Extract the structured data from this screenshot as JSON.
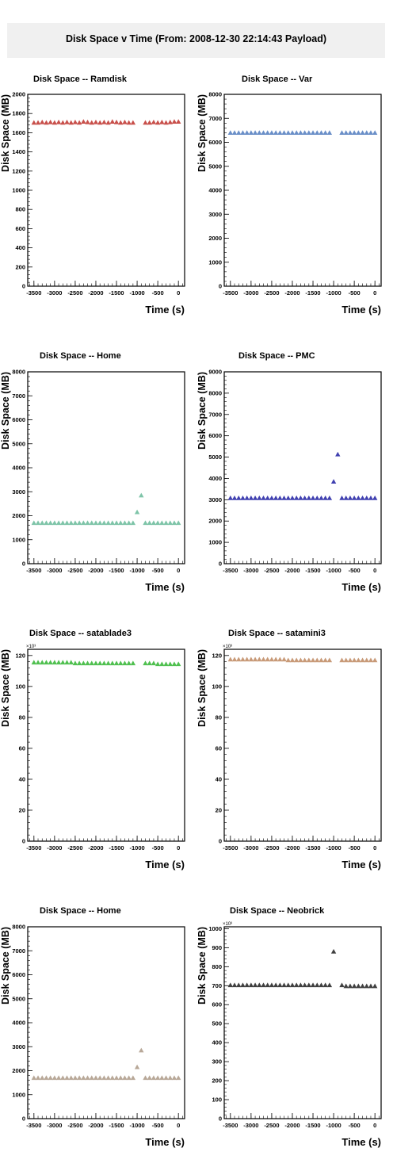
{
  "page_title": "Disk Space v Time (From: 2008-12-30 22:14:43 Payload)",
  "chart_data": [
    {
      "type": "scatter",
      "title": "Disk Space -- Ramdisk",
      "xlabel": "Time (s)",
      "ylabel": "Disk Space (MB)",
      "xlim": [
        -3650,
        150
      ],
      "ylim": [
        0,
        2000
      ],
      "xticks": [
        -3500,
        -3000,
        -2500,
        -2000,
        -1500,
        -1000,
        -500,
        0
      ],
      "yticks": [
        0,
        200,
        400,
        600,
        800,
        1000,
        1200,
        1400,
        1600,
        1800,
        2000
      ],
      "multiplier": "",
      "color": "#c8504b",
      "x": [
        -3500,
        -3400,
        -3300,
        -3200,
        -3100,
        -3000,
        -2900,
        -2800,
        -2700,
        -2600,
        -2500,
        -2400,
        -2300,
        -2200,
        -2100,
        -2000,
        -1900,
        -1800,
        -1700,
        -1600,
        -1500,
        -1400,
        -1300,
        -1200,
        -1100,
        -800,
        -700,
        -600,
        -500,
        -400,
        -300,
        -200,
        -100,
        0
      ],
      "y": [
        1705,
        1705,
        1710,
        1705,
        1710,
        1705,
        1710,
        1705,
        1710,
        1705,
        1710,
        1705,
        1715,
        1710,
        1705,
        1710,
        1705,
        1710,
        1705,
        1715,
        1710,
        1705,
        1710,
        1705,
        1705,
        1705,
        1705,
        1710,
        1705,
        1710,
        1705,
        1710,
        1715,
        1715
      ]
    },
    {
      "type": "scatter",
      "title": "Disk Space -- Var",
      "xlabel": "Time (s)",
      "ylabel": "Disk Space (MB)",
      "xlim": [
        -3650,
        150
      ],
      "ylim": [
        0,
        8000
      ],
      "xticks": [
        -3500,
        -3000,
        -2500,
        -2000,
        -1500,
        -1000,
        -500,
        0
      ],
      "yticks": [
        0,
        1000,
        2000,
        3000,
        4000,
        5000,
        6000,
        7000,
        8000
      ],
      "multiplier": "",
      "color": "#6a8fc8",
      "x": [
        -3500,
        -3400,
        -3300,
        -3200,
        -3100,
        -3000,
        -2900,
        -2800,
        -2700,
        -2600,
        -2500,
        -2400,
        -2300,
        -2200,
        -2100,
        -2000,
        -1900,
        -1800,
        -1700,
        -1600,
        -1500,
        -1400,
        -1300,
        -1200,
        -1100,
        -800,
        -700,
        -600,
        -500,
        -400,
        -300,
        -200,
        -100,
        0
      ],
      "y": [
        6400,
        6400,
        6400,
        6400,
        6400,
        6400,
        6400,
        6400,
        6400,
        6400,
        6400,
        6400,
        6400,
        6400,
        6400,
        6400,
        6400,
        6400,
        6400,
        6400,
        6400,
        6400,
        6400,
        6400,
        6400,
        6400,
        6400,
        6400,
        6400,
        6400,
        6400,
        6400,
        6400,
        6400
      ]
    },
    {
      "type": "scatter",
      "title": "Disk Space -- Home",
      "xlabel": "Time (s)",
      "ylabel": "Disk Space (MB)",
      "xlim": [
        -3650,
        150
      ],
      "ylim": [
        0,
        8000
      ],
      "xticks": [
        -3500,
        -3000,
        -2500,
        -2000,
        -1500,
        -1000,
        -500,
        0
      ],
      "yticks": [
        0,
        1000,
        2000,
        3000,
        4000,
        5000,
        6000,
        7000,
        8000
      ],
      "multiplier": "",
      "color": "#7ec4a8",
      "x": [
        -3500,
        -3400,
        -3300,
        -3200,
        -3100,
        -3000,
        -2900,
        -2800,
        -2700,
        -2600,
        -2500,
        -2400,
        -2300,
        -2200,
        -2100,
        -2000,
        -1900,
        -1800,
        -1700,
        -1600,
        -1500,
        -1400,
        -1300,
        -1200,
        -1100,
        -1000,
        -900,
        -800,
        -700,
        -600,
        -500,
        -400,
        -300,
        -200,
        -100,
        0
      ],
      "y": [
        1700,
        1700,
        1700,
        1700,
        1700,
        1700,
        1700,
        1700,
        1700,
        1700,
        1700,
        1700,
        1700,
        1700,
        1700,
        1700,
        1700,
        1700,
        1700,
        1700,
        1700,
        1700,
        1700,
        1700,
        1700,
        2150,
        2850,
        1700,
        1700,
        1700,
        1700,
        1700,
        1700,
        1700,
        1700,
        1700
      ]
    },
    {
      "type": "scatter",
      "title": "Disk Space -- PMC",
      "xlabel": "Time (s)",
      "ylabel": "Disk Space (MB)",
      "xlim": [
        -3650,
        150
      ],
      "ylim": [
        0,
        9000
      ],
      "xticks": [
        -3500,
        -3000,
        -2500,
        -2000,
        -1500,
        -1000,
        -500,
        0
      ],
      "yticks": [
        0,
        1000,
        2000,
        3000,
        4000,
        5000,
        6000,
        7000,
        8000,
        9000
      ],
      "multiplier": "",
      "color": "#4040b0",
      "x": [
        -3500,
        -3400,
        -3300,
        -3200,
        -3100,
        -3000,
        -2900,
        -2800,
        -2700,
        -2600,
        -2500,
        -2400,
        -2300,
        -2200,
        -2100,
        -2000,
        -1900,
        -1800,
        -1700,
        -1600,
        -1500,
        -1400,
        -1300,
        -1200,
        -1100,
        -1000,
        -900,
        -800,
        -700,
        -600,
        -500,
        -400,
        -300,
        -200,
        -100,
        0
      ],
      "y": [
        3080,
        3080,
        3080,
        3080,
        3080,
        3080,
        3080,
        3080,
        3080,
        3080,
        3080,
        3080,
        3080,
        3080,
        3080,
        3080,
        3080,
        3080,
        3080,
        3080,
        3080,
        3080,
        3080,
        3080,
        3080,
        3850,
        5130,
        3080,
        3080,
        3080,
        3080,
        3080,
        3080,
        3080,
        3080,
        3080
      ]
    },
    {
      "type": "scatter",
      "title": "Disk Space -- satablade3",
      "xlabel": "Time (s)",
      "ylabel": "Disk Space (MB)",
      "xlim": [
        -3650,
        150
      ],
      "ylim": [
        0,
        124
      ],
      "xticks": [
        -3500,
        -3000,
        -2500,
        -2000,
        -1500,
        -1000,
        -500,
        0
      ],
      "yticks": [
        0,
        20,
        40,
        60,
        80,
        100,
        120
      ],
      "multiplier": "×10³",
      "color": "#50c050",
      "x": [
        -3500,
        -3400,
        -3300,
        -3200,
        -3100,
        -3000,
        -2900,
        -2800,
        -2700,
        -2600,
        -2500,
        -2400,
        -2300,
        -2200,
        -2100,
        -2000,
        -1900,
        -1800,
        -1700,
        -1600,
        -1500,
        -1400,
        -1300,
        -1200,
        -1100,
        -800,
        -700,
        -600,
        -500,
        -400,
        -300,
        -200,
        -100,
        0
      ],
      "y": [
        115.5,
        115.5,
        115.5,
        115.5,
        115.5,
        115.5,
        115.5,
        115.5,
        115.5,
        115.5,
        115.0,
        115.0,
        115.0,
        115.0,
        115.0,
        115.0,
        115.0,
        115.0,
        115.0,
        115.0,
        115.0,
        115.0,
        115.0,
        115.0,
        115.0,
        115.0,
        115.0,
        115.0,
        114.5,
        114.5,
        114.5,
        114.5,
        114.5,
        114.5
      ]
    },
    {
      "type": "scatter",
      "title": "Disk Space -- satamini3",
      "xlabel": "Time (s)",
      "ylabel": "Disk Space (MB)",
      "xlim": [
        -3650,
        150
      ],
      "ylim": [
        0,
        124
      ],
      "xticks": [
        -3500,
        -3000,
        -2500,
        -2000,
        -1500,
        -1000,
        -500,
        0
      ],
      "yticks": [
        0,
        20,
        40,
        60,
        80,
        100,
        120
      ],
      "multiplier": "×10³",
      "color": "#c89a78",
      "x": [
        -3500,
        -3400,
        -3300,
        -3200,
        -3100,
        -3000,
        -2900,
        -2800,
        -2700,
        -2600,
        -2500,
        -2400,
        -2300,
        -2200,
        -2100,
        -2000,
        -1900,
        -1800,
        -1700,
        -1600,
        -1500,
        -1400,
        -1300,
        -1200,
        -1100,
        -800,
        -700,
        -600,
        -500,
        -400,
        -300,
        -200,
        -100,
        0
      ],
      "y": [
        117.5,
        117.5,
        117.5,
        117.5,
        117.5,
        117.5,
        117.5,
        117.5,
        117.5,
        117.5,
        117.5,
        117.5,
        117.5,
        117.5,
        117.0,
        117.0,
        117.0,
        117.0,
        117.0,
        117.0,
        117.0,
        117.0,
        117.0,
        117.0,
        117.0,
        117.0,
        117.0,
        117.0,
        117.0,
        117.0,
        117.0,
        117.0,
        117.0,
        117.0
      ]
    },
    {
      "type": "scatter",
      "title": "Disk Space -- Home",
      "xlabel": "Time (s)",
      "ylabel": "Disk Space (MB)",
      "xlim": [
        -3650,
        150
      ],
      "ylim": [
        0,
        8000
      ],
      "xticks": [
        -3500,
        -3000,
        -2500,
        -2000,
        -1500,
        -1000,
        -500,
        0
      ],
      "yticks": [
        0,
        1000,
        2000,
        3000,
        4000,
        5000,
        6000,
        7000,
        8000
      ],
      "multiplier": "",
      "color": "#b8a898",
      "x": [
        -3500,
        -3400,
        -3300,
        -3200,
        -3100,
        -3000,
        -2900,
        -2800,
        -2700,
        -2600,
        -2500,
        -2400,
        -2300,
        -2200,
        -2100,
        -2000,
        -1900,
        -1800,
        -1700,
        -1600,
        -1500,
        -1400,
        -1300,
        -1200,
        -1100,
        -1000,
        -900,
        -800,
        -700,
        -600,
        -500,
        -400,
        -300,
        -200,
        -100,
        0
      ],
      "y": [
        1700,
        1700,
        1700,
        1700,
        1700,
        1700,
        1700,
        1700,
        1700,
        1700,
        1700,
        1700,
        1700,
        1700,
        1700,
        1700,
        1700,
        1700,
        1700,
        1700,
        1700,
        1700,
        1700,
        1700,
        1700,
        2150,
        2850,
        1700,
        1700,
        1700,
        1700,
        1700,
        1700,
        1700,
        1700,
        1700
      ]
    },
    {
      "type": "scatter",
      "title": "Disk Space -- Neobrick",
      "xlabel": "Time (s)",
      "ylabel": "Disk Space (MB)",
      "xlim": [
        -3650,
        150
      ],
      "ylim": [
        0,
        1010
      ],
      "xticks": [
        -3500,
        -3000,
        -2500,
        -2000,
        -1500,
        -1000,
        -500,
        0
      ],
      "yticks": [
        0,
        100,
        200,
        300,
        400,
        500,
        600,
        700,
        800,
        900,
        1000
      ],
      "multiplier": "×10³",
      "color": "#404040",
      "x": [
        -3500,
        -3400,
        -3300,
        -3200,
        -3100,
        -3000,
        -2900,
        -2800,
        -2700,
        -2600,
        -2500,
        -2400,
        -2300,
        -2200,
        -2100,
        -2000,
        -1900,
        -1800,
        -1700,
        -1600,
        -1500,
        -1400,
        -1300,
        -1200,
        -1100,
        -1000,
        -800,
        -700,
        -600,
        -500,
        -400,
        -300,
        -200,
        -100,
        0
      ],
      "y": [
        703,
        703,
        703,
        703,
        703,
        703,
        703,
        703,
        703,
        703,
        703,
        703,
        703,
        703,
        703,
        703,
        703,
        703,
        703,
        703,
        703,
        703,
        703,
        703,
        703,
        880,
        703,
        698,
        698,
        698,
        698,
        698,
        698,
        698,
        698
      ]
    }
  ]
}
